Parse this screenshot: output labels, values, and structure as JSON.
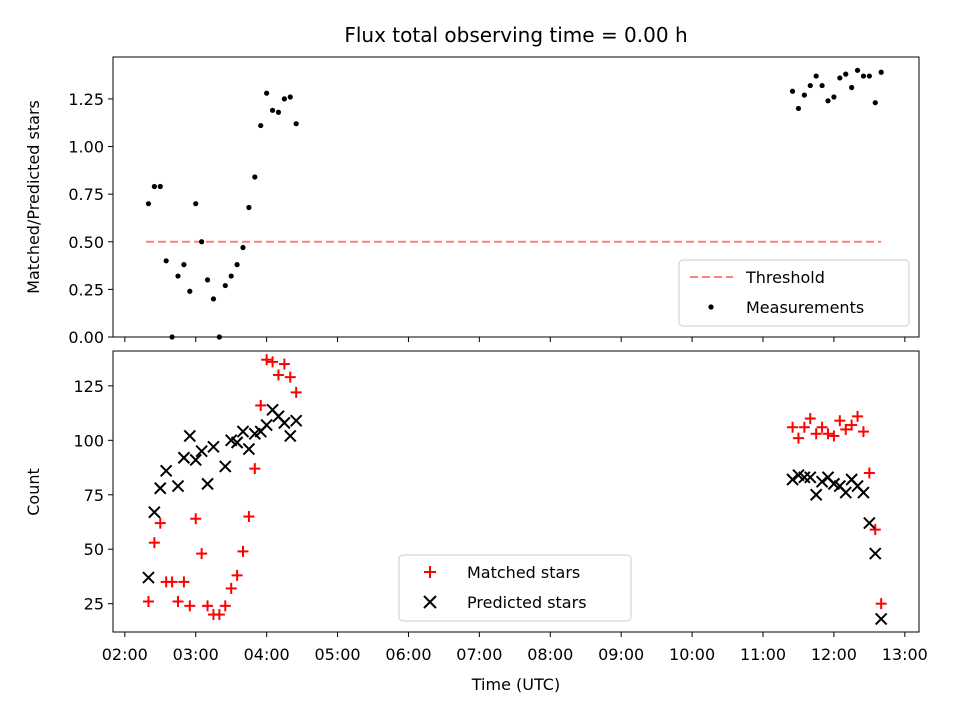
{
  "chart_data": [
    {
      "type": "scatter",
      "title": "Flux total observing time = 0.00 h",
      "xlabel": "",
      "ylabel": "Matched/Predicted stars",
      "xlim": [
        "01:50",
        "13:12"
      ],
      "ylim": [
        0,
        1.47
      ],
      "yticks": [
        "0.00",
        "0.25",
        "0.50",
        "0.75",
        "1.00",
        "1.25"
      ],
      "legend_position": "lower right",
      "series": [
        {
          "name": "Threshold",
          "style": "dashed line",
          "color": "#ff7f7f",
          "x": [
            "02:18",
            "12:40"
          ],
          "y": [
            0.5,
            0.5
          ]
        },
        {
          "name": "Measurements",
          "style": "dots",
          "color": "#000000",
          "points": [
            [
              "02:20",
              0.7
            ],
            [
              "02:25",
              0.79
            ],
            [
              "02:30",
              0.79
            ],
            [
              "02:35",
              0.4
            ],
            [
              "02:40",
              0.0
            ],
            [
              "02:45",
              0.32
            ],
            [
              "02:50",
              0.38
            ],
            [
              "02:55",
              0.24
            ],
            [
              "03:00",
              0.7
            ],
            [
              "03:05",
              0.5
            ],
            [
              "03:10",
              0.3
            ],
            [
              "03:15",
              0.2
            ],
            [
              "03:20",
              0.0
            ],
            [
              "03:25",
              0.27
            ],
            [
              "03:30",
              0.32
            ],
            [
              "03:35",
              0.38
            ],
            [
              "03:40",
              0.47
            ],
            [
              "03:45",
              0.68
            ],
            [
              "03:50",
              0.84
            ],
            [
              "03:55",
              1.11
            ],
            [
              "04:00",
              1.28
            ],
            [
              "04:05",
              1.19
            ],
            [
              "04:10",
              1.18
            ],
            [
              "04:15",
              1.25
            ],
            [
              "04:20",
              1.26
            ],
            [
              "04:25",
              1.12
            ],
            [
              "11:25",
              1.29
            ],
            [
              "11:30",
              1.2
            ],
            [
              "11:35",
              1.27
            ],
            [
              "11:40",
              1.32
            ],
            [
              "11:45",
              1.37
            ],
            [
              "11:50",
              1.32
            ],
            [
              "11:55",
              1.24
            ],
            [
              "12:00",
              1.26
            ],
            [
              "12:05",
              1.36
            ],
            [
              "12:10",
              1.38
            ],
            [
              "12:15",
              1.31
            ],
            [
              "12:20",
              1.4
            ],
            [
              "12:25",
              1.37
            ],
            [
              "12:30",
              1.37
            ],
            [
              "12:35",
              1.23
            ],
            [
              "12:40",
              1.39
            ]
          ]
        }
      ]
    },
    {
      "type": "scatter",
      "title": "",
      "xlabel": "Time (UTC)",
      "ylabel": "Count",
      "xlim": [
        "01:50",
        "13:12"
      ],
      "ylim": [
        12,
        141
      ],
      "yticks": [
        "25",
        "50",
        "75",
        "100",
        "125"
      ],
      "xticks": [
        "02:00",
        "03:00",
        "04:00",
        "05:00",
        "06:00",
        "07:00",
        "08:00",
        "09:00",
        "10:00",
        "11:00",
        "12:00",
        "13:00"
      ],
      "legend_position": "lower center",
      "series": [
        {
          "name": "Matched stars",
          "marker": "plus",
          "color": "#ff0000",
          "points": [
            [
              "02:20",
              26
            ],
            [
              "02:25",
              53
            ],
            [
              "02:30",
              62
            ],
            [
              "02:35",
              35
            ],
            [
              "02:40",
              35
            ],
            [
              "02:45",
              26
            ],
            [
              "02:50",
              35
            ],
            [
              "02:55",
              24
            ],
            [
              "03:00",
              64
            ],
            [
              "03:05",
              48
            ],
            [
              "03:10",
              24
            ],
            [
              "03:15",
              20
            ],
            [
              "03:20",
              20
            ],
            [
              "03:25",
              24
            ],
            [
              "03:30",
              32
            ],
            [
              "03:35",
              38
            ],
            [
              "03:40",
              49
            ],
            [
              "03:45",
              65
            ],
            [
              "03:50",
              87
            ],
            [
              "03:55",
              116
            ],
            [
              "04:00",
              137
            ],
            [
              "04:05",
              136
            ],
            [
              "04:10",
              130
            ],
            [
              "04:15",
              135
            ],
            [
              "04:20",
              129
            ],
            [
              "04:25",
              122
            ],
            [
              "11:25",
              106
            ],
            [
              "11:30",
              101
            ],
            [
              "11:35",
              106
            ],
            [
              "11:40",
              110
            ],
            [
              "11:45",
              103
            ],
            [
              "11:50",
              106
            ],
            [
              "11:55",
              103
            ],
            [
              "12:00",
              102
            ],
            [
              "12:05",
              109
            ],
            [
              "12:10",
              105
            ],
            [
              "12:15",
              107
            ],
            [
              "12:20",
              111
            ],
            [
              "12:25",
              104
            ],
            [
              "12:30",
              85
            ],
            [
              "12:35",
              59
            ],
            [
              "12:40",
              25
            ]
          ]
        },
        {
          "name": "Predicted stars",
          "marker": "x",
          "color": "#000000",
          "points": [
            [
              "02:20",
              37
            ],
            [
              "02:25",
              67
            ],
            [
              "02:30",
              78
            ],
            [
              "02:35",
              86
            ],
            [
              "02:45",
              79
            ],
            [
              "02:50",
              92
            ],
            [
              "02:55",
              102
            ],
            [
              "03:00",
              91
            ],
            [
              "03:05",
              95
            ],
            [
              "03:10",
              80
            ],
            [
              "03:15",
              97
            ],
            [
              "03:25",
              88
            ],
            [
              "03:30",
              100
            ],
            [
              "03:35",
              99
            ],
            [
              "03:40",
              104
            ],
            [
              "03:45",
              96
            ],
            [
              "03:50",
              103
            ],
            [
              "03:55",
              104
            ],
            [
              "04:00",
              107
            ],
            [
              "04:05",
              114
            ],
            [
              "04:10",
              111
            ],
            [
              "04:15",
              108
            ],
            [
              "04:20",
              102
            ],
            [
              "04:25",
              109
            ],
            [
              "11:25",
              82
            ],
            [
              "11:30",
              84
            ],
            [
              "11:35",
              83
            ],
            [
              "11:40",
              83
            ],
            [
              "11:45",
              75
            ],
            [
              "11:50",
              81
            ],
            [
              "11:55",
              83
            ],
            [
              "12:00",
              80
            ],
            [
              "12:05",
              79
            ],
            [
              "12:10",
              76
            ],
            [
              "12:15",
              82
            ],
            [
              "12:20",
              79
            ],
            [
              "12:25",
              76
            ],
            [
              "12:30",
              62
            ],
            [
              "12:35",
              48
            ],
            [
              "12:40",
              18
            ]
          ]
        }
      ]
    }
  ]
}
